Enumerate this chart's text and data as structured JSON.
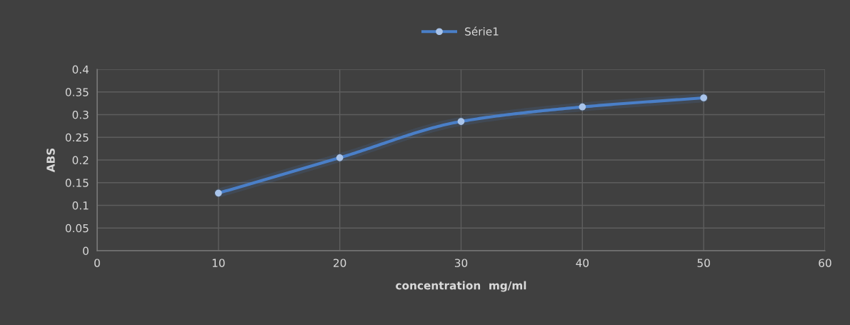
{
  "chart_data": {
    "type": "line",
    "xlabel": "concentration  mg/ml",
    "ylabel": "ABS",
    "x": [
      10,
      20,
      30,
      40,
      50
    ],
    "series": [
      {
        "name": "Série1",
        "color": "#4a7fc8",
        "values": [
          0.127,
          0.205,
          0.285,
          0.317,
          0.337
        ]
      }
    ],
    "xlim": [
      0,
      60
    ],
    "xticks": [
      0,
      10,
      20,
      30,
      40,
      50,
      60
    ],
    "ylim": [
      0,
      0.4
    ],
    "yticks": [
      0,
      0.05,
      0.1,
      0.15,
      0.2,
      0.25,
      0.3,
      0.35,
      0.4
    ],
    "grid": true,
    "legend": "top",
    "marker": "circle",
    "line_style": "solid"
  }
}
